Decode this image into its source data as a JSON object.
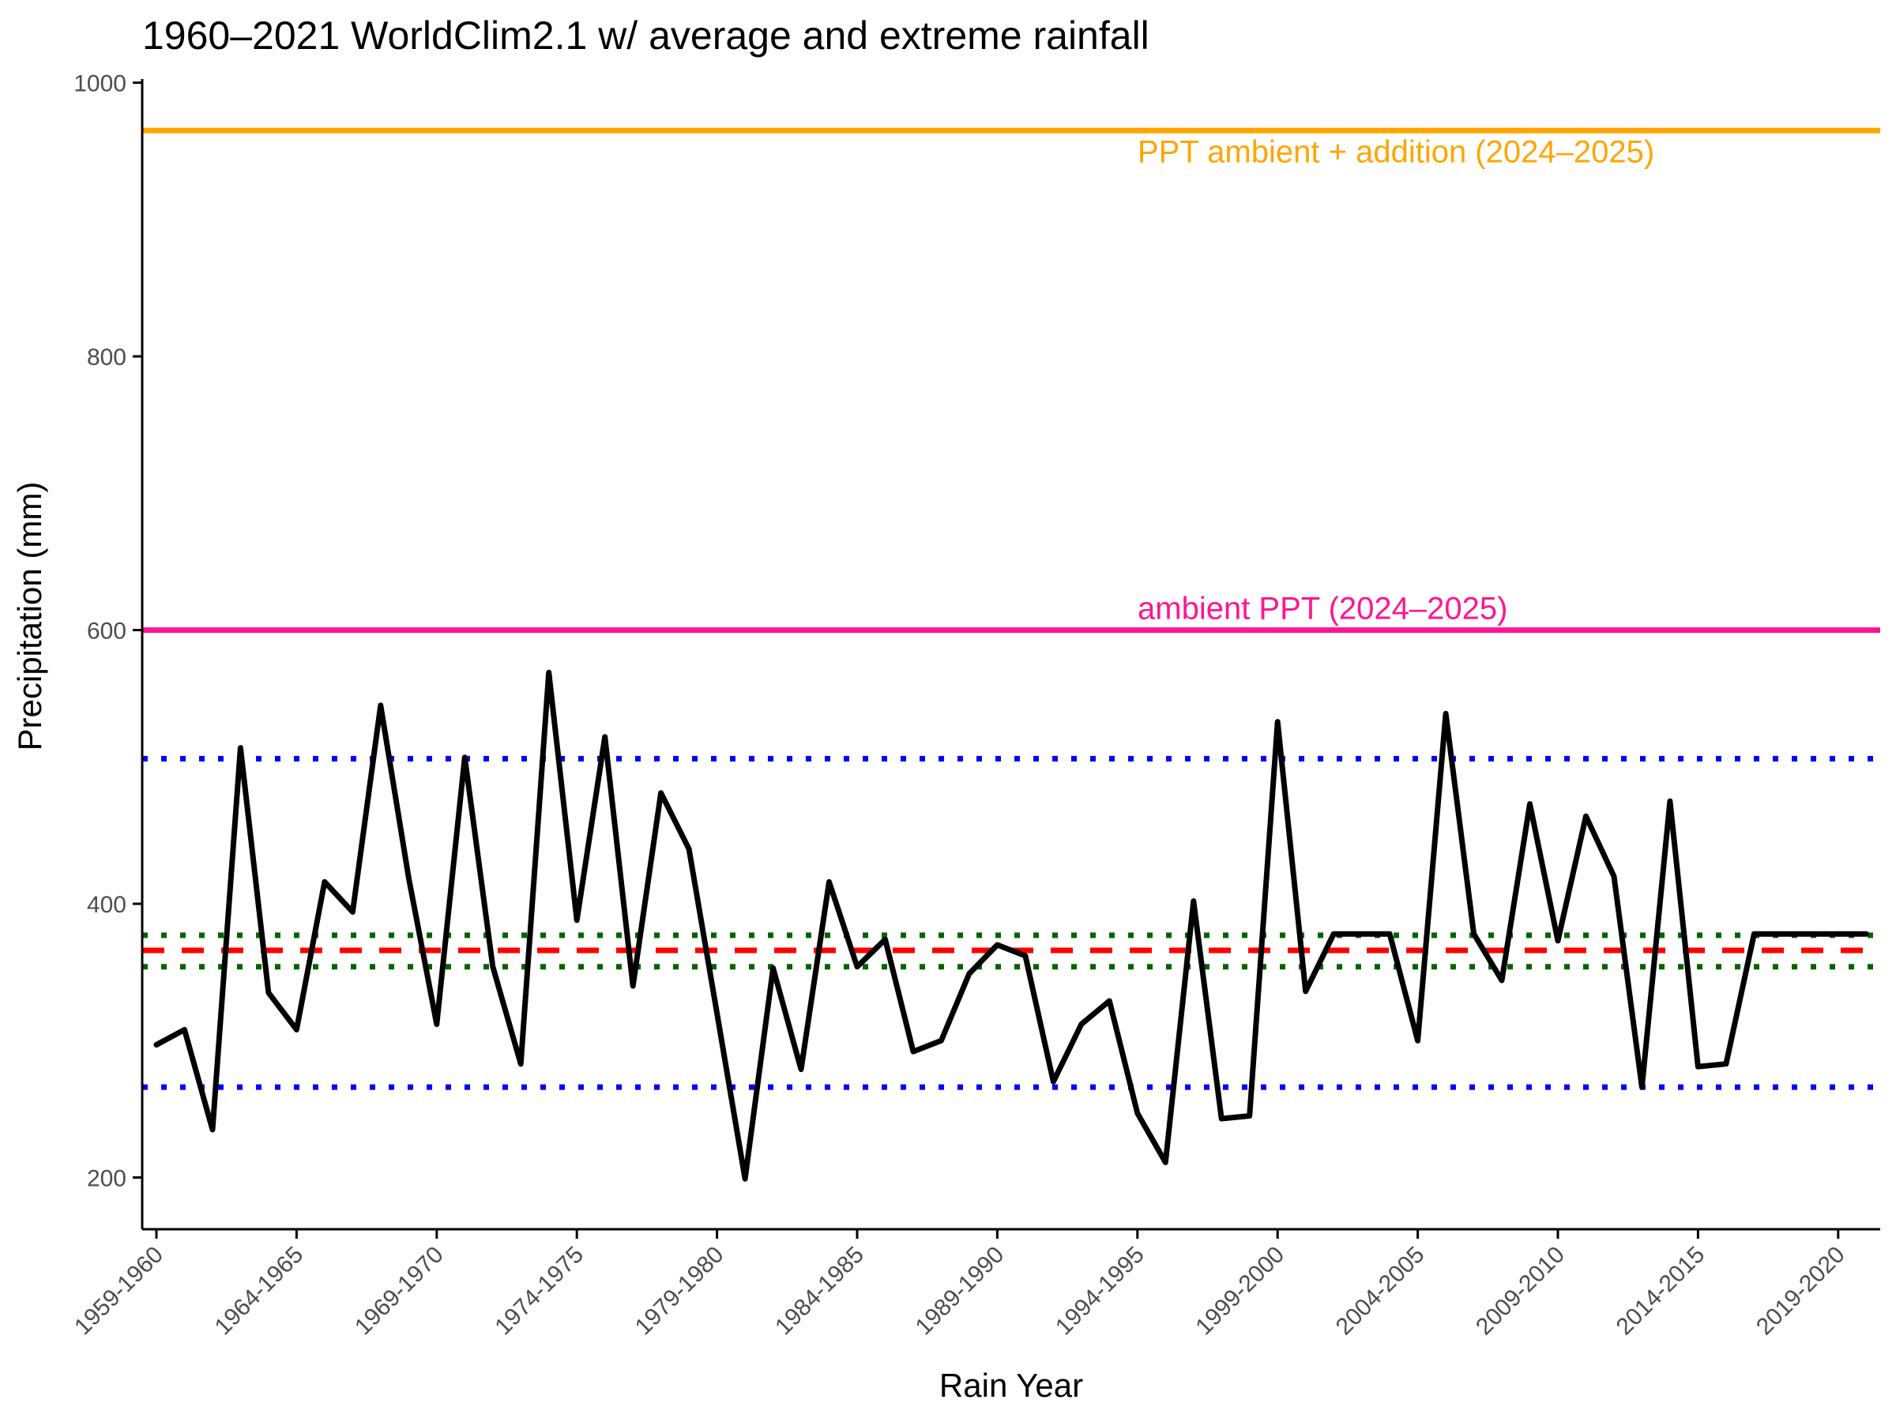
{
  "chart_data": {
    "type": "line",
    "title": "1960–2021 WorldClim2.1 w/ average and extreme rainfall",
    "xlabel": "Rain Year",
    "ylabel": "Precipitation (mm)",
    "ylim": [
      163,
      1000
    ],
    "yticks": [
      200,
      400,
      600,
      800,
      1000
    ],
    "grid": false,
    "x_tick_labels": [
      "1959-1960",
      "1964-1965",
      "1969-1970",
      "1974-1975",
      "1979-1980",
      "1984-1985",
      "1989-1990",
      "1994-1995",
      "1999-2000",
      "2004-2005",
      "2009-2010",
      "2014-2015",
      "2019-2020"
    ],
    "categories": [
      "1959-1960",
      "1960-1961",
      "1961-1962",
      "1962-1963",
      "1963-1964",
      "1964-1965",
      "1965-1966",
      "1966-1967",
      "1967-1968",
      "1968-1969",
      "1969-1970",
      "1970-1971",
      "1971-1972",
      "1972-1973",
      "1973-1974",
      "1974-1975",
      "1975-1976",
      "1976-1977",
      "1977-1978",
      "1978-1979",
      "1979-1980",
      "1980-1981",
      "1981-1982",
      "1982-1983",
      "1983-1984",
      "1984-1985",
      "1985-1986",
      "1986-1987",
      "1987-1988",
      "1988-1989",
      "1989-1990",
      "1990-1991",
      "1991-1992",
      "1992-1993",
      "1993-1994",
      "1994-1995",
      "1995-1996",
      "1996-1997",
      "1997-1998",
      "1998-1999",
      "1999-2000",
      "2000-2001",
      "2001-2002",
      "2002-2003",
      "2003-2004",
      "2004-2005",
      "2005-2006",
      "2006-2007",
      "2007-2008",
      "2008-2009",
      "2009-2010",
      "2010-2011",
      "2011-2012",
      "2012-2013",
      "2013-2014",
      "2014-2015",
      "2015-2016",
      "2016-2017",
      "2017-2018",
      "2018-2019",
      "2019-2020",
      "2020-2021"
    ],
    "series": [
      {
        "color": "#000000",
        "values": [
          297,
          308,
          235,
          514,
          335,
          308,
          416,
          394,
          545,
          419,
          312,
          507,
          354,
          283,
          569,
          388,
          522,
          340,
          481,
          440,
          320,
          199,
          353,
          279,
          416,
          354,
          374,
          292,
          300,
          349,
          370,
          362,
          270,
          312,
          329,
          247,
          211,
          402,
          243,
          245,
          533,
          336,
          378,
          378,
          378,
          300,
          539,
          378,
          344,
          473,
          373,
          464,
          420,
          266,
          475,
          281,
          283,
          378,
          378,
          378,
          378,
          378
        ]
      }
    ],
    "reference_lines": [
      {
        "y": 965,
        "color": "#ffa500",
        "style": "solid",
        "label": "PPT ambient + addition (2024–2025)"
      },
      {
        "y": 600,
        "color": "#ff1493",
        "style": "solid",
        "label": "ambient PPT (2024–2025)"
      },
      {
        "y": 506,
        "color": "#0000ff",
        "style": "dotted"
      },
      {
        "y": 266,
        "color": "#0000ff",
        "style": "dotted"
      },
      {
        "y": 377,
        "color": "#006400",
        "style": "dotted"
      },
      {
        "y": 354,
        "color": "#006400",
        "style": "dotted"
      },
      {
        "y": 366,
        "color": "#ff0000",
        "style": "dashed"
      }
    ]
  }
}
